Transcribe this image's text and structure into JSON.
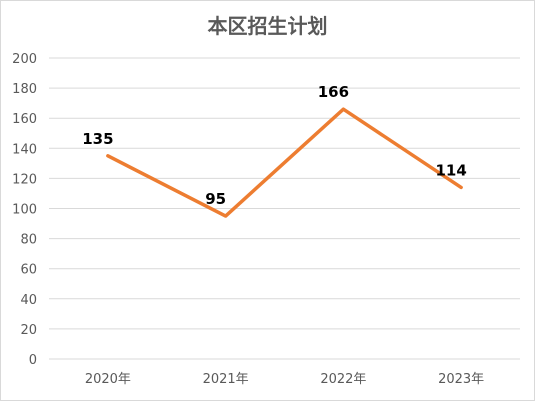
{
  "chart_data": {
    "type": "line",
    "title": "本区招生计划",
    "categories": [
      "2020年",
      "2021年",
      "2022年",
      "2023年"
    ],
    "series": [
      {
        "values": [
          135,
          95,
          166,
          114
        ]
      }
    ],
    "ylim": [
      0,
      200
    ],
    "yticks": [
      0,
      20,
      40,
      60,
      80,
      100,
      120,
      140,
      160,
      180,
      200
    ],
    "grid": true,
    "legend": "none",
    "colors": {
      "line": "#ED7D31",
      "grid": "#d9d9d9",
      "text": "#595959"
    }
  }
}
